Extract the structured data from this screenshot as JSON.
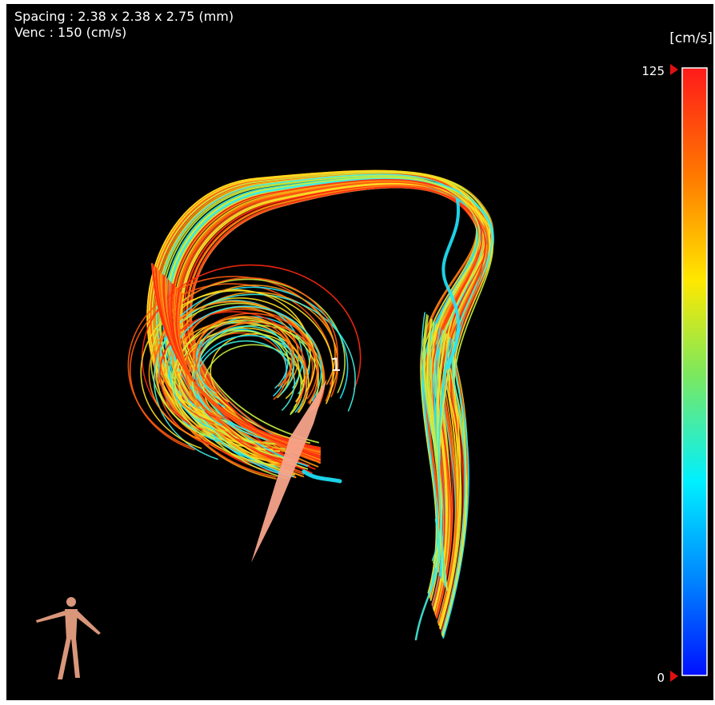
{
  "header": {
    "spacing": "Spacing : 2.38 x 2.38 x 2.75 (mm)",
    "venc": "Venc : 150 (cm/s)"
  },
  "colorbar": {
    "unit": "[cm/s]",
    "max": "125",
    "min": "0"
  },
  "plane_label": "1"
}
